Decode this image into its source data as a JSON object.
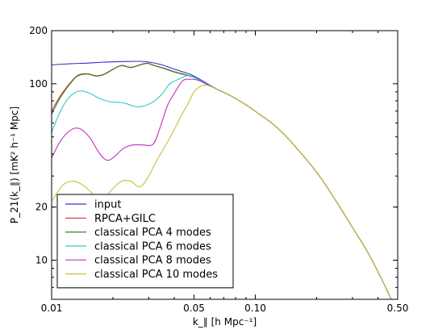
{
  "chart_data": {
    "type": "line",
    "title": "",
    "xlabel": "k_∥ [h Mpc⁻¹]",
    "ylabel": "P_21(k_∥) [mK² h⁻¹ Mpc]",
    "x_scale": "log",
    "y_scale": "log",
    "xlim": [
      0.01,
      0.5
    ],
    "ylim": [
      6,
      200
    ],
    "grid": false,
    "legend_position": "bottom-left",
    "x_ticks": [
      0.01,
      0.05,
      0.1,
      0.5
    ],
    "x_tick_labels": [
      "0.01",
      "0.05",
      "0.10",
      "0.50"
    ],
    "y_ticks": [
      10,
      20,
      100,
      200
    ],
    "y_tick_labels": [
      "10",
      "20",
      "100",
      "200"
    ],
    "series": [
      {
        "name": "input",
        "color": "#3030d0",
        "points": [
          [
            0.01,
            128
          ],
          [
            0.0125,
            130
          ],
          [
            0.015,
            131
          ],
          [
            0.018,
            132.5
          ],
          [
            0.021,
            133.5
          ],
          [
            0.025,
            134
          ],
          [
            0.029,
            133.5
          ],
          [
            0.034,
            129
          ],
          [
            0.04,
            121
          ],
          [
            0.048,
            113
          ],
          [
            0.055,
            104
          ],
          [
            0.065,
            93
          ],
          [
            0.075,
            86
          ],
          [
            0.09,
            76
          ],
          [
            0.105,
            67
          ],
          [
            0.12,
            60
          ],
          [
            0.14,
            51
          ],
          [
            0.16,
            43
          ],
          [
            0.19,
            34
          ],
          [
            0.22,
            27
          ],
          [
            0.26,
            20
          ],
          [
            0.3,
            15.3
          ],
          [
            0.35,
            11.5
          ],
          [
            0.4,
            8.6
          ],
          [
            0.45,
            6.5
          ],
          [
            0.47,
            5.8
          ]
        ]
      },
      {
        "name": "RPCA+GILC",
        "color": "#e03030",
        "points": [
          [
            0.01,
            70
          ],
          [
            0.011,
            85
          ],
          [
            0.0125,
            103
          ],
          [
            0.0135,
            112
          ],
          [
            0.015,
            114
          ],
          [
            0.0165,
            111
          ],
          [
            0.018,
            113
          ],
          [
            0.02,
            121
          ],
          [
            0.022,
            127
          ],
          [
            0.0245,
            124
          ],
          [
            0.027,
            128
          ],
          [
            0.0295,
            131
          ],
          [
            0.032,
            127
          ],
          [
            0.036,
            122
          ],
          [
            0.04,
            117
          ],
          [
            0.045,
            113
          ],
          [
            0.05,
            109
          ],
          [
            0.055,
            103
          ],
          [
            0.065,
            93
          ],
          [
            0.075,
            86
          ],
          [
            0.09,
            76
          ],
          [
            0.105,
            67
          ],
          [
            0.12,
            60
          ],
          [
            0.14,
            51
          ],
          [
            0.16,
            43
          ],
          [
            0.19,
            34
          ],
          [
            0.22,
            27
          ],
          [
            0.26,
            20
          ],
          [
            0.3,
            15.3
          ],
          [
            0.35,
            11.5
          ],
          [
            0.4,
            8.6
          ],
          [
            0.45,
            6.5
          ],
          [
            0.47,
            5.8
          ]
        ]
      },
      {
        "name": "classical PCA 4 modes",
        "color": "#2a8a2a",
        "points": [
          [
            0.01,
            67
          ],
          [
            0.011,
            83
          ],
          [
            0.0125,
            102
          ],
          [
            0.0135,
            111
          ],
          [
            0.015,
            113.5
          ],
          [
            0.0165,
            110.5
          ],
          [
            0.018,
            112.5
          ],
          [
            0.02,
            120.5
          ],
          [
            0.022,
            126.5
          ],
          [
            0.0245,
            123.5
          ],
          [
            0.027,
            127.5
          ],
          [
            0.0295,
            130.5
          ],
          [
            0.032,
            126.5
          ],
          [
            0.036,
            121.5
          ],
          [
            0.04,
            116.5
          ],
          [
            0.045,
            112.5
          ],
          [
            0.05,
            108.5
          ],
          [
            0.055,
            103
          ],
          [
            0.065,
            93
          ],
          [
            0.075,
            86
          ],
          [
            0.09,
            76
          ],
          [
            0.105,
            67
          ],
          [
            0.12,
            60
          ],
          [
            0.14,
            51
          ],
          [
            0.16,
            43
          ],
          [
            0.19,
            34
          ],
          [
            0.22,
            27
          ],
          [
            0.26,
            20
          ],
          [
            0.3,
            15.3
          ],
          [
            0.35,
            11.5
          ],
          [
            0.4,
            8.6
          ],
          [
            0.45,
            6.5
          ],
          [
            0.47,
            5.8
          ]
        ]
      },
      {
        "name": "classical PCA 6 modes",
        "color": "#30c8c8",
        "points": [
          [
            0.01,
            53
          ],
          [
            0.0108,
            66
          ],
          [
            0.0118,
            80
          ],
          [
            0.013,
            89
          ],
          [
            0.014,
            91
          ],
          [
            0.0155,
            88
          ],
          [
            0.017,
            83
          ],
          [
            0.019,
            79.5
          ],
          [
            0.021,
            78.5
          ],
          [
            0.023,
            77.5
          ],
          [
            0.025,
            75
          ],
          [
            0.027,
            74
          ],
          [
            0.0295,
            76
          ],
          [
            0.032,
            80
          ],
          [
            0.035,
            88
          ],
          [
            0.038,
            100
          ],
          [
            0.042,
            106
          ],
          [
            0.046,
            111
          ],
          [
            0.05,
            109
          ],
          [
            0.055,
            103
          ],
          [
            0.065,
            93
          ],
          [
            0.075,
            86
          ],
          [
            0.09,
            76
          ],
          [
            0.105,
            67
          ],
          [
            0.12,
            60
          ],
          [
            0.14,
            51
          ],
          [
            0.16,
            43
          ],
          [
            0.19,
            34
          ],
          [
            0.22,
            27
          ],
          [
            0.26,
            20
          ],
          [
            0.3,
            15.3
          ],
          [
            0.35,
            11.5
          ],
          [
            0.4,
            8.6
          ],
          [
            0.45,
            6.5
          ],
          [
            0.47,
            5.8
          ]
        ]
      },
      {
        "name": "classical PCA 8 modes",
        "color": "#c030c0",
        "points": [
          [
            0.01,
            38
          ],
          [
            0.011,
            47
          ],
          [
            0.012,
            53
          ],
          [
            0.013,
            56
          ],
          [
            0.014,
            55
          ],
          [
            0.0155,
            49
          ],
          [
            0.017,
            41
          ],
          [
            0.0185,
            37
          ],
          [
            0.02,
            38
          ],
          [
            0.0225,
            43
          ],
          [
            0.025,
            45
          ],
          [
            0.028,
            45
          ],
          [
            0.0315,
            45.5
          ],
          [
            0.034,
            56
          ],
          [
            0.037,
            75
          ],
          [
            0.04,
            88
          ],
          [
            0.044,
            104
          ],
          [
            0.048,
            106
          ],
          [
            0.052,
            105
          ],
          [
            0.056,
            101
          ],
          [
            0.065,
            93
          ],
          [
            0.075,
            86
          ],
          [
            0.09,
            76
          ],
          [
            0.105,
            67
          ],
          [
            0.12,
            60
          ],
          [
            0.14,
            51
          ],
          [
            0.16,
            43
          ],
          [
            0.19,
            34
          ],
          [
            0.22,
            27
          ],
          [
            0.26,
            20
          ],
          [
            0.3,
            15.3
          ],
          [
            0.35,
            11.5
          ],
          [
            0.4,
            8.6
          ],
          [
            0.45,
            6.5
          ],
          [
            0.47,
            5.8
          ]
        ]
      },
      {
        "name": "classical PCA 10 modes",
        "color": "#c8c030",
        "points": [
          [
            0.01,
            21.5
          ],
          [
            0.011,
            25.5
          ],
          [
            0.0118,
            27.5
          ],
          [
            0.0128,
            28
          ],
          [
            0.014,
            27
          ],
          [
            0.0155,
            24.5
          ],
          [
            0.017,
            22
          ],
          [
            0.0182,
            22.5
          ],
          [
            0.02,
            25.5
          ],
          [
            0.022,
            28
          ],
          [
            0.0245,
            28
          ],
          [
            0.027,
            26
          ],
          [
            0.0295,
            29
          ],
          [
            0.0325,
            36
          ],
          [
            0.036,
            44
          ],
          [
            0.04,
            55
          ],
          [
            0.043,
            65
          ],
          [
            0.047,
            78
          ],
          [
            0.05,
            90
          ],
          [
            0.054,
            97
          ],
          [
            0.058,
            98
          ],
          [
            0.065,
            93
          ],
          [
            0.075,
            86
          ],
          [
            0.09,
            76
          ],
          [
            0.105,
            67
          ],
          [
            0.12,
            60
          ],
          [
            0.14,
            51
          ],
          [
            0.16,
            43
          ],
          [
            0.19,
            34
          ],
          [
            0.22,
            27
          ],
          [
            0.26,
            20
          ],
          [
            0.3,
            15.3
          ],
          [
            0.35,
            11.5
          ],
          [
            0.4,
            8.6
          ],
          [
            0.45,
            6.5
          ],
          [
            0.47,
            5.8
          ]
        ]
      }
    ]
  }
}
